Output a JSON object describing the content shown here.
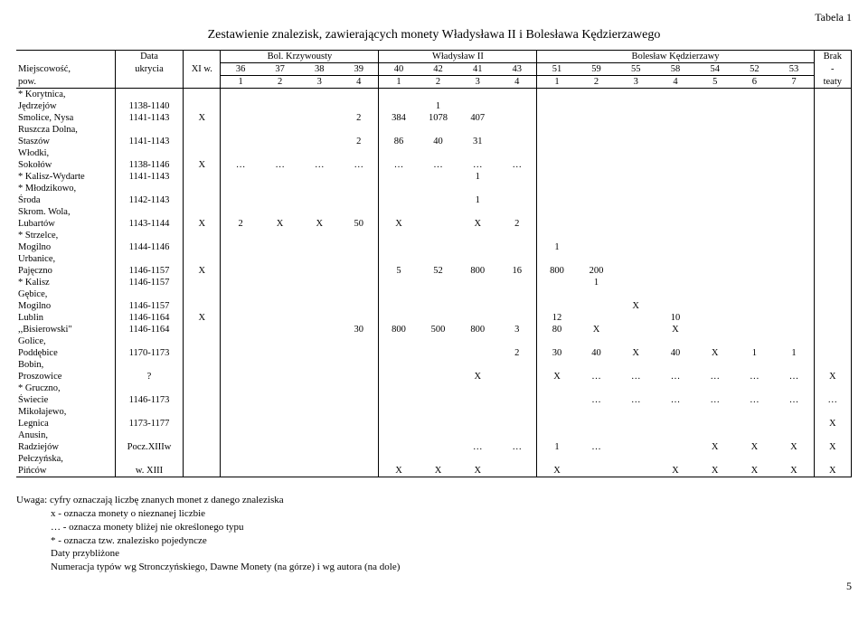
{
  "tableLabel": "Tabela 1",
  "title": "Zestawienie znalezisk, zawierających monety Władysława II i Bolesława Kędzierzawego",
  "header": {
    "loc1": "Miejscowość,",
    "loc2": "pow.",
    "date1": "Data",
    "date2": "ukrycia",
    "xi": "XI w.",
    "group_bol": "Bol. Krzywousty",
    "group_wlad": "Władysław II",
    "group_bolk": "Bolesław Kędzierzawy",
    "brak1": "Brak",
    "brak2": "-",
    "brak3": "teaty",
    "top_nums": [
      "36",
      "37",
      "38",
      "39",
      "40",
      "42",
      "41",
      "43",
      "51",
      "59",
      "55",
      "58",
      "54",
      "52",
      "53"
    ],
    "bot_nums": [
      "1",
      "2",
      "3",
      "4",
      "1",
      "2",
      "3",
      "4",
      "1",
      "2",
      "3",
      "4",
      "5",
      "6",
      "7"
    ]
  },
  "rows": [
    {
      "l1": "* Korytnica,",
      "l2": "Jędrzejów",
      "date": "1138-1140",
      "xi": "",
      "c": [
        "",
        "",
        "",
        "",
        "",
        "1",
        "",
        "",
        "",
        "",
        "",
        "",
        "",
        "",
        ""
      ],
      "brak": ""
    },
    {
      "l1": "Smolice, Nysa",
      "l2": "",
      "date": "1141-1143",
      "xi": "X",
      "c": [
        "",
        "",
        "",
        "2",
        "384",
        "1078",
        "407",
        "",
        "",
        "",
        "",
        "",
        "",
        "",
        ""
      ],
      "brak": ""
    },
    {
      "l1": "Ruszcza Dolna,",
      "l2": "Staszów",
      "date": "1141-1143",
      "xi": "",
      "c": [
        "",
        "",
        "",
        "2",
        "86",
        "40",
        "31",
        "",
        "",
        "",
        "",
        "",
        "",
        "",
        ""
      ],
      "brak": ""
    },
    {
      "l1": "Włodki,",
      "l2": "Sokołów",
      "date": "1138-1146",
      "xi": "X",
      "c": [
        "…",
        "…",
        "…",
        "…",
        "…",
        "…",
        "…",
        "…",
        "",
        "",
        "",
        "",
        "",
        "",
        ""
      ],
      "brak": ""
    },
    {
      "l1": "* Kalisz-Wydarte",
      "l2": "",
      "date": "1141-1143",
      "xi": "",
      "c": [
        "",
        "",
        "",
        "",
        "",
        "",
        "1",
        "",
        "",
        "",
        "",
        "",
        "",
        "",
        ""
      ],
      "brak": ""
    },
    {
      "l1": "* Młodzikowo,",
      "l2": "Środa",
      "date": "1142-1143",
      "xi": "",
      "c": [
        "",
        "",
        "",
        "",
        "",
        "",
        "1",
        "",
        "",
        "",
        "",
        "",
        "",
        "",
        ""
      ],
      "brak": ""
    },
    {
      "l1": "Skrom. Wola,",
      "l2": "Lubartów",
      "date": "1143-1144",
      "xi": "X",
      "c": [
        "2",
        "X",
        "X",
        "50",
        "X",
        "",
        "X",
        "2",
        "",
        "",
        "",
        "",
        "",
        "",
        ""
      ],
      "brak": ""
    },
    {
      "l1": "* Strzelce,",
      "l2": "Mogilno",
      "date": "1144-1146",
      "xi": "",
      "c": [
        "",
        "",
        "",
        "",
        "",
        "",
        "",
        "",
        "1",
        "",
        "",
        "",
        "",
        "",
        ""
      ],
      "brak": ""
    },
    {
      "l1": "Urbanice,",
      "l2": "Pajęczno",
      "date": "1146-1157",
      "xi": "X",
      "c": [
        "",
        "",
        "",
        "",
        "5",
        "52",
        "800",
        "16",
        "800",
        "200",
        "",
        "",
        "",
        "",
        ""
      ],
      "brak": ""
    },
    {
      "l1": "* Kalisz",
      "l2": "",
      "date": "1146-1157",
      "xi": "",
      "c": [
        "",
        "",
        "",
        "",
        "",
        "",
        "",
        "",
        "",
        "1",
        "",
        "",
        "",
        "",
        ""
      ],
      "brak": ""
    },
    {
      "l1": "Gębice,",
      "l2": "Mogilno",
      "date": "1146-1157",
      "xi": "",
      "c": [
        "",
        "",
        "",
        "",
        "",
        "",
        "",
        "",
        "",
        "",
        "X",
        "",
        "",
        "",
        ""
      ],
      "brak": ""
    },
    {
      "l1": "Lublin",
      "l2": "",
      "date": "1146-1164",
      "xi": "X",
      "c": [
        "",
        "",
        "",
        "",
        "",
        "",
        "",
        "",
        "12",
        "",
        "",
        "10",
        "",
        "",
        ""
      ],
      "brak": ""
    },
    {
      "l1": ",,Bisierowski\"",
      "l2": "",
      "date": "1146-1164",
      "xi": "",
      "c": [
        "",
        "",
        "",
        "30",
        "800",
        "500",
        "800",
        "3",
        "80",
        "X",
        "",
        "X",
        "",
        "",
        ""
      ],
      "brak": ""
    },
    {
      "l1": "Golice,",
      "l2": "Poddębice",
      "date": "1170-1173",
      "xi": "",
      "c": [
        "",
        "",
        "",
        "",
        "",
        "",
        "",
        "2",
        "30",
        "40",
        "X",
        "40",
        "X",
        "1",
        "1"
      ],
      "brak": ""
    },
    {
      "l1": "Bobin,",
      "l2": "Proszowice",
      "date": "?",
      "xi": "",
      "c": [
        "",
        "",
        "",
        "",
        "",
        "",
        "X",
        "",
        "X",
        "…",
        "…",
        "…",
        "…",
        "…",
        "…"
      ],
      "brak": "X"
    },
    {
      "l1": "* Gruczno,",
      "l2": "Świecie",
      "date": "1146-1173",
      "xi": "",
      "c": [
        "",
        "",
        "",
        "",
        "",
        "",
        "",
        "",
        "",
        "…",
        "…",
        "…",
        "…",
        "…",
        "…"
      ],
      "brak": "…"
    },
    {
      "l1": "Mikołajewo,",
      "l2": "Legnica",
      "date": "1173-1177",
      "xi": "",
      "c": [
        "",
        "",
        "",
        "",
        "",
        "",
        "",
        "",
        "",
        "",
        "",
        "",
        "",
        "",
        ""
      ],
      "brak": "X"
    },
    {
      "l1": "Anusin,",
      "l2": "Radziejów",
      "date": "Pocz.XIIIw",
      "xi": "",
      "c": [
        "",
        "",
        "",
        "",
        "",
        "",
        "…",
        "…",
        "1",
        "…",
        "",
        "",
        "X",
        "X",
        "X"
      ],
      "brak": "X"
    },
    {
      "l1": "Pełczyńska,",
      "l2": "Pińców",
      "date": "w. XIII",
      "xi": "",
      "c": [
        "",
        "",
        "",
        "",
        "X",
        "X",
        "X",
        "",
        "X",
        "",
        "",
        "X",
        "X",
        "X",
        "X"
      ],
      "brak": "X"
    }
  ],
  "notes": {
    "n1": "Uwaga: cyfry oznaczają liczbę znanych monet z danego znaleziska",
    "n2": "x - oznacza monety o nieznanej liczbie",
    "n3": "… - oznacza monety bliżej nie określonego typu",
    "n4": "* - oznacza tzw. znalezisko pojedyncze",
    "n5": "Daty przybliżone",
    "n6": "Numeracja typów wg Stronczyńskiego, Dawne Monety (na górze) i wg autora (na dole)"
  },
  "pageNum": "5"
}
